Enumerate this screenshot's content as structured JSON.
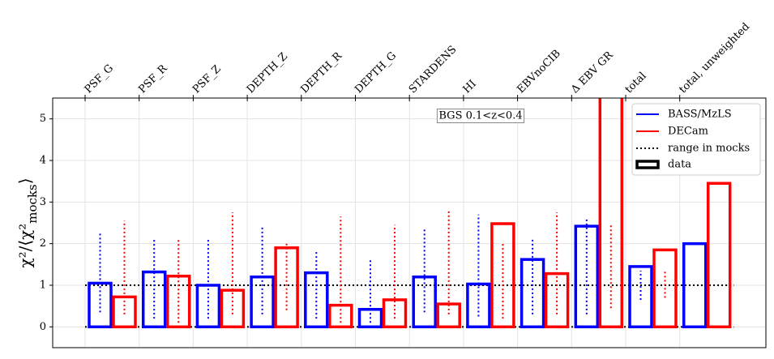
{
  "chart_data": {
    "type": "bar",
    "categories": [
      "PSF_G",
      "PSF_R",
      "PSF_Z",
      "DEPTH_Z",
      "DEPTH_R",
      "DEPTH_G",
      "STARDENS",
      "HI",
      "EBVnoCIB",
      "Δ EBV GR",
      "total",
      "total, unweighted"
    ],
    "series": [
      {
        "name": "BASS/MzLS",
        "color": "#0000ff",
        "values": [
          1.05,
          1.32,
          1.0,
          1.2,
          1.3,
          0.42,
          1.2,
          1.03,
          1.62,
          2.42,
          1.45,
          2.0
        ],
        "range_low": [
          0.35,
          0.2,
          0.2,
          0.3,
          0.2,
          0.1,
          0.35,
          0.25,
          0.3,
          0.3,
          0.65,
          null
        ],
        "range_high": [
          2.25,
          2.1,
          2.1,
          2.4,
          1.85,
          1.6,
          2.35,
          2.7,
          2.1,
          2.6,
          1.35,
          null
        ]
      },
      {
        "name": "DECam",
        "color": "#ff0000",
        "values": [
          0.72,
          1.22,
          0.88,
          1.9,
          0.52,
          0.65,
          0.55,
          2.48,
          1.28,
          6.0,
          1.85,
          3.45
        ],
        "range_low": [
          0.3,
          0.1,
          0.3,
          0.4,
          0.1,
          0.2,
          0.3,
          0.2,
          0.3,
          0.45,
          0.7,
          null
        ],
        "range_high": [
          2.55,
          2.1,
          2.75,
          2.0,
          2.65,
          2.45,
          2.8,
          2.0,
          2.75,
          2.45,
          1.35,
          null
        ]
      }
    ],
    "reference_lines": [
      0,
      1
    ],
    "ylabel": [
      "χ²/⟨χ²",
      "mocks",
      "⟩"
    ],
    "annotation": "BGS 0.1<z<0.4",
    "range_label": "range in mocks",
    "data_label": "data",
    "ylim": [
      -0.5,
      5.5
    ],
    "yticks": [
      0,
      1,
      2,
      3,
      4,
      5
    ],
    "grid": true,
    "legend": "upper right"
  }
}
